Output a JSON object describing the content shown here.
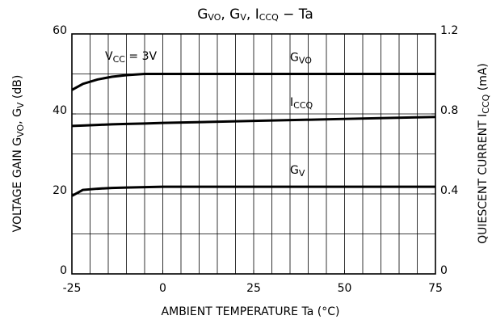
{
  "chart_data": {
    "type": "line",
    "title_parts": [
      "G",
      "VO",
      ", G",
      "V",
      ", I",
      "CCQ",
      "  −  Ta"
    ],
    "xlabel_parts": [
      "AMBIENT TEMPERATURE    Ta    (°C)"
    ],
    "ylabel_parts": [
      "VOLTAGE GAIN   G",
      "VO",
      ", G",
      "V",
      "   (dB)"
    ],
    "y2label_parts": [
      "QUIESCENT CURRENT   I",
      "CCQ",
      "   (mA)"
    ],
    "annotation_parts": [
      "V",
      "CC",
      " = 3V"
    ],
    "x": [
      -25,
      -22,
      -18,
      -14,
      -10,
      -5,
      0,
      25,
      50,
      75
    ],
    "series": [
      {
        "name": "GVO",
        "color": "#000000",
        "values": [
          46,
          47.5,
          48.6,
          49.3,
          49.7,
          50,
          50,
          50,
          50,
          50
        ]
      },
      {
        "name": "ICCQ",
        "color": "#000000",
        "axis": "y2",
        "values": [
          0.74,
          0.742,
          0.745,
          0.748,
          0.75,
          0.752,
          0.755,
          0.765,
          0.775,
          0.785
        ]
      },
      {
        "name": "GV",
        "color": "#000000",
        "values": [
          19.5,
          21,
          21.3,
          21.5,
          21.6,
          21.7,
          21.8,
          21.8,
          21.8,
          21.8
        ]
      }
    ],
    "xlim": [
      -25,
      75
    ],
    "xticks": [
      -25,
      0,
      25,
      50,
      75
    ],
    "xgrid": [
      -20,
      -15,
      -10,
      -5,
      0,
      5,
      10,
      15,
      20,
      25,
      30,
      35,
      40,
      45,
      50,
      55,
      60,
      65,
      70
    ],
    "ylim": [
      0,
      60
    ],
    "yticks": [
      0,
      20,
      40,
      60
    ],
    "ygrid": [
      10,
      20,
      30,
      40,
      50
    ],
    "y2lim": [
      0,
      1.2
    ],
    "y2ticks": [
      0,
      0.4,
      0.8,
      1.2
    ],
    "grid": true
  }
}
